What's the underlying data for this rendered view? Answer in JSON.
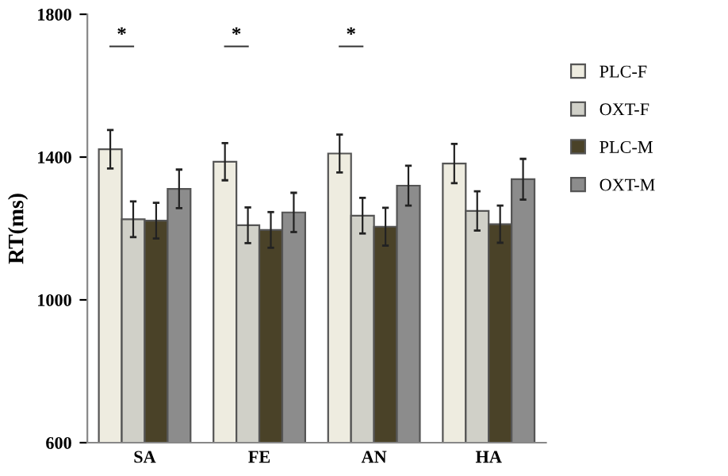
{
  "chart_data": {
    "type": "bar",
    "ylabel": "RT(ms)",
    "categories": [
      "SA",
      "FE",
      "AN",
      "HA"
    ],
    "series": [
      {
        "name": "PLC-F",
        "color": "#eeece0",
        "values": [
          1422,
          1387,
          1410,
          1382
        ],
        "errors": [
          54,
          52,
          53,
          55
        ]
      },
      {
        "name": "OXT-F",
        "color": "#d0d0c8",
        "values": [
          1226,
          1209,
          1236,
          1249
        ],
        "errors": [
          50,
          50,
          50,
          55
        ]
      },
      {
        "name": "PLC-M",
        "color": "#4a4228",
        "values": [
          1222,
          1196,
          1205,
          1212
        ],
        "errors": [
          50,
          50,
          53,
          52
        ]
      },
      {
        "name": "OXT-M",
        "color": "#8c8c8c",
        "values": [
          1311,
          1245,
          1320,
          1338
        ],
        "errors": [
          54,
          55,
          56,
          57
        ]
      }
    ],
    "ylim": [
      600,
      1800
    ],
    "yticks": [
      600,
      1000,
      1400,
      1800
    ],
    "grid": false,
    "legend": "right",
    "annotations": [
      "*",
      "*",
      "*"
    ]
  }
}
